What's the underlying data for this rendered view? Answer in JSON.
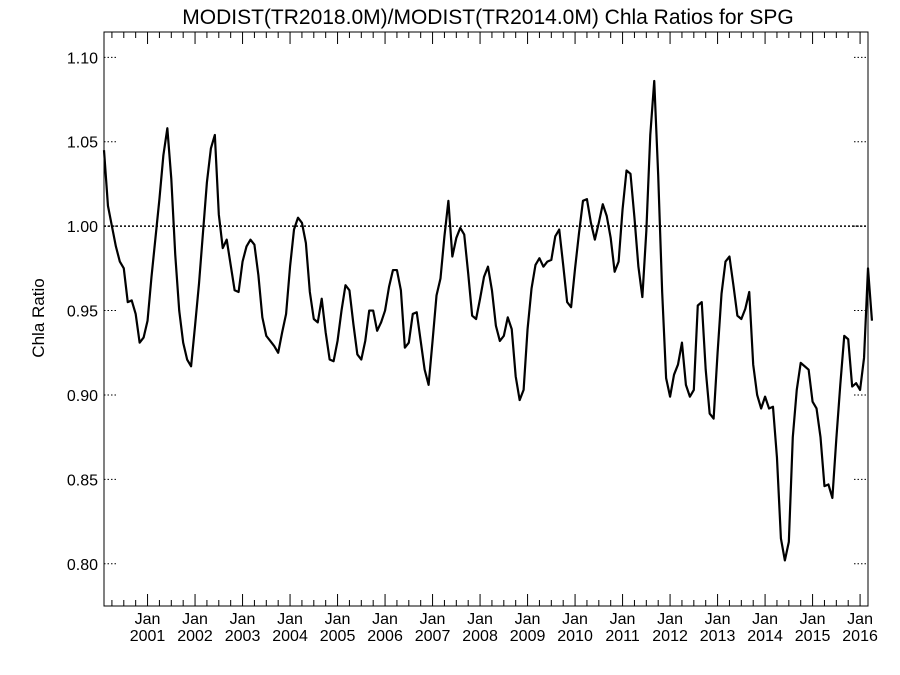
{
  "chart_data": {
    "type": "line",
    "title": "MODIST(TR2018.0M)/MODIST(TR2014.0M)  Chla Ratios for SPG",
    "xlabel": "",
    "ylabel": "Chla Ratio",
    "ylim": [
      0.775,
      1.115
    ],
    "xlim": [
      "2000-02-01",
      "2016-03-01"
    ],
    "y_ticks": [
      0.8,
      0.85,
      0.9,
      0.95,
      1.0,
      1.05,
      1.1
    ],
    "y_tick_labels": [
      "0.80",
      "0.85",
      "0.90",
      "0.95",
      "1.00",
      "1.05",
      "1.10"
    ],
    "x_ticks": [
      "2001-01-01",
      "2002-01-01",
      "2003-01-01",
      "2004-01-01",
      "2005-01-01",
      "2006-01-01",
      "2007-01-01",
      "2008-01-01",
      "2009-01-01",
      "2010-01-01",
      "2011-01-01",
      "2012-01-01",
      "2013-01-01",
      "2014-01-01",
      "2015-01-01",
      "2016-01-01"
    ],
    "x_tick_labels_top": [
      "Jan",
      "Jan",
      "Jan",
      "Jan",
      "Jan",
      "Jan",
      "Jan",
      "Jan",
      "Jan",
      "Jan",
      "Jan",
      "Jan",
      "Jan",
      "Jan",
      "Jan",
      "Jan"
    ],
    "x_tick_labels_bottom": [
      "2001",
      "2002",
      "2003",
      "2004",
      "2005",
      "2006",
      "2007",
      "2008",
      "2009",
      "2010",
      "2011",
      "2012",
      "2013",
      "2014",
      "2015",
      "2016"
    ],
    "reference_line": 1.0,
    "grid": false,
    "series": [
      {
        "start": "2000-02-01",
        "step": "month",
        "values": [
          1.045,
          1.012,
          1.0,
          0.988,
          0.979,
          0.975,
          0.955,
          0.956,
          0.948,
          0.931,
          0.934,
          0.944,
          0.97,
          0.993,
          1.016,
          1.042,
          1.058,
          1.028,
          0.983,
          0.95,
          0.931,
          0.921,
          0.917,
          0.941,
          0.966,
          0.996,
          1.026,
          1.046,
          1.054,
          1.007,
          0.987,
          0.992,
          0.977,
          0.962,
          0.961,
          0.979,
          0.988,
          0.992,
          0.989,
          0.971,
          0.946,
          0.935,
          0.932,
          0.929,
          0.925,
          0.937,
          0.948,
          0.976,
          0.998,
          1.005,
          1.002,
          0.99,
          0.961,
          0.945,
          0.943,
          0.957,
          0.937,
          0.921,
          0.92,
          0.932,
          0.95,
          0.965,
          0.962,
          0.942,
          0.924,
          0.921,
          0.932,
          0.95,
          0.95,
          0.938,
          0.943,
          0.95,
          0.964,
          0.974,
          0.974,
          0.962,
          0.928,
          0.931,
          0.948,
          0.949,
          0.932,
          0.915,
          0.906,
          0.932,
          0.959,
          0.969,
          0.994,
          1.015,
          0.982,
          0.993,
          0.999,
          0.995,
          0.972,
          0.947,
          0.945,
          0.957,
          0.97,
          0.976,
          0.962,
          0.941,
          0.932,
          0.935,
          0.946,
          0.939,
          0.911,
          0.897,
          0.903,
          0.939,
          0.963,
          0.977,
          0.981,
          0.976,
          0.979,
          0.98,
          0.994,
          0.998,
          0.977,
          0.955,
          0.952,
          0.975,
          0.996,
          1.015,
          1.016,
          1.002,
          0.992,
          1.002,
          1.013,
          1.006,
          0.993,
          0.973,
          0.979,
          1.01,
          1.033,
          1.031,
          1.005,
          0.976,
          0.958,
          0.997,
          1.054,
          1.086,
          1.03,
          0.961,
          0.91,
          0.899,
          0.912,
          0.918,
          0.931,
          0.906,
          0.899,
          0.903,
          0.953,
          0.955,
          0.915,
          0.889,
          0.886,
          0.925,
          0.96,
          0.979,
          0.982,
          0.965,
          0.947,
          0.945,
          0.951,
          0.961,
          0.918,
          0.9,
          0.892,
          0.899,
          0.892,
          0.893,
          0.863,
          0.815,
          0.802,
          0.813,
          0.875,
          0.903,
          0.919,
          0.917,
          0.915,
          0.896,
          0.892,
          0.875,
          0.846,
          0.847,
          0.839,
          0.874,
          0.906,
          0.935,
          0.933,
          0.905,
          0.907,
          0.903,
          0.922,
          0.975,
          0.944
        ]
      }
    ]
  }
}
